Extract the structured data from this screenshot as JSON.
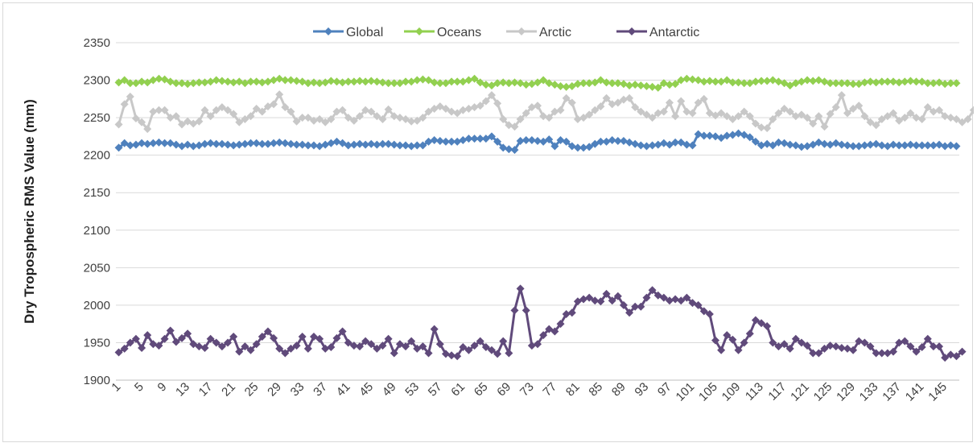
{
  "chart_data": {
    "type": "line",
    "title": "",
    "xlabel": "",
    "ylabel": "Dry Tropospheric RMS Value (mm)",
    "ylim": [
      1900,
      2350
    ],
    "yticks": [
      1900,
      1950,
      2000,
      2050,
      2100,
      2150,
      2200,
      2250,
      2300,
      2350
    ],
    "x_tick_start": 1,
    "x_tick_step": 4,
    "x_tick_end": 145,
    "legend_position": "top-center",
    "grid": "horizontal",
    "series": [
      {
        "name": "Global",
        "color": "#4f81bd",
        "values": [
          2210,
          2216,
          2213,
          2214,
          2216,
          2215,
          2216,
          2217,
          2216,
          2216,
          2214,
          2212,
          2214,
          2212,
          2213,
          2215,
          2216,
          2215,
          2215,
          2214,
          2213,
          2214,
          2215,
          2216,
          2216,
          2215,
          2215,
          2216,
          2217,
          2216,
          2215,
          2214,
          2214,
          2213,
          2213,
          2212,
          2214,
          2216,
          2218,
          2216,
          2213,
          2214,
          2215,
          2214,
          2215,
          2214,
          2215,
          2215,
          2214,
          2213,
          2213,
          2212,
          2213,
          2213,
          2218,
          2220,
          2219,
          2218,
          2218,
          2218,
          2220,
          2222,
          2222,
          2222,
          2222,
          2225,
          2218,
          2210,
          2208,
          2207,
          2219,
          2220,
          2220,
          2219,
          2218,
          2221,
          2212,
          2220,
          2218,
          2212,
          2210,
          2210,
          2211,
          2215,
          2218,
          2218,
          2220,
          2219,
          2219,
          2217,
          2215,
          2213,
          2212,
          2213,
          2214,
          2216,
          2214,
          2217,
          2217,
          2214,
          2213,
          2228,
          2226,
          2226,
          2225,
          2223,
          2226,
          2227,
          2229,
          2227,
          2224,
          2218,
          2213,
          2215,
          2213,
          2217,
          2216,
          2214,
          2213,
          2211,
          2212,
          2214,
          2217,
          2215,
          2214,
          2216,
          2214,
          2213,
          2212,
          2212,
          2213,
          2214,
          2215,
          2213,
          2212,
          2214,
          2213,
          2213,
          2214,
          2213,
          2213,
          2213,
          2213,
          2214,
          2212,
          2213,
          2212
        ]
      },
      {
        "name": "Oceans",
        "color": "#92d050",
        "values": [
          2297,
          2300,
          2296,
          2296,
          2298,
          2297,
          2300,
          2302,
          2301,
          2298,
          2296,
          2296,
          2295,
          2296,
          2297,
          2297,
          2298,
          2300,
          2299,
          2298,
          2297,
          2298,
          2296,
          2298,
          2298,
          2297,
          2298,
          2300,
          2302,
          2300,
          2300,
          2299,
          2298,
          2296,
          2297,
          2296,
          2297,
          2299,
          2298,
          2297,
          2298,
          2298,
          2299,
          2298,
          2299,
          2298,
          2297,
          2296,
          2296,
          2296,
          2298,
          2298,
          2300,
          2301,
          2300,
          2297,
          2296,
          2296,
          2298,
          2298,
          2298,
          2300,
          2302,
          2297,
          2294,
          2293,
          2296,
          2297,
          2296,
          2297,
          2296,
          2294,
          2295,
          2297,
          2300,
          2296,
          2294,
          2292,
          2291,
          2292,
          2295,
          2296,
          2296,
          2297,
          2300,
          2297,
          2296,
          2296,
          2295,
          2293,
          2294,
          2293,
          2292,
          2291,
          2290,
          2296,
          2294,
          2295,
          2300,
          2302,
          2301,
          2300,
          2298,
          2299,
          2298,
          2298,
          2300,
          2297,
          2297,
          2296,
          2296,
          2298,
          2299,
          2299,
          2300,
          2298,
          2296,
          2293,
          2296,
          2298,
          2300,
          2299,
          2300,
          2298,
          2296,
          2296,
          2296,
          2296,
          2295,
          2295,
          2297,
          2298,
          2297,
          2298,
          2298,
          2298,
          2297,
          2298,
          2299,
          2298,
          2298,
          2296,
          2296,
          2297,
          2295,
          2296,
          2296
        ]
      },
      {
        "name": "Arctic",
        "color": "#c8c8c8",
        "values": [
          2241,
          2268,
          2278,
          2249,
          2244,
          2235,
          2258,
          2260,
          2260,
          2250,
          2252,
          2241,
          2245,
          2242,
          2245,
          2260,
          2252,
          2260,
          2264,
          2260,
          2255,
          2244,
          2248,
          2252,
          2262,
          2258,
          2265,
          2268,
          2281,
          2264,
          2258,
          2245,
          2250,
          2250,
          2246,
          2248,
          2244,
          2248,
          2258,
          2260,
          2250,
          2246,
          2252,
          2260,
          2258,
          2252,
          2248,
          2261,
          2252,
          2250,
          2248,
          2245,
          2246,
          2250,
          2258,
          2262,
          2265,
          2262,
          2258,
          2256,
          2260,
          2262,
          2264,
          2266,
          2272,
          2280,
          2269,
          2248,
          2240,
          2238,
          2248,
          2256,
          2264,
          2266,
          2252,
          2250,
          2258,
          2260,
          2276,
          2270,
          2248,
          2250,
          2254,
          2260,
          2265,
          2276,
          2268,
          2270,
          2274,
          2276,
          2264,
          2258,
          2254,
          2250,
          2256,
          2258,
          2270,
          2252,
          2272,
          2258,
          2256,
          2270,
          2275,
          2256,
          2253,
          2256,
          2252,
          2248,
          2252,
          2258,
          2252,
          2242,
          2237,
          2236,
          2248,
          2256,
          2262,
          2258,
          2252,
          2254,
          2250,
          2242,
          2252,
          2238,
          2255,
          2264,
          2280,
          2256,
          2262,
          2266,
          2252,
          2244,
          2240,
          2248,
          2252,
          2256,
          2246,
          2250,
          2256,
          2250,
          2248,
          2264,
          2258,
          2260,
          2252,
          2250,
          2248,
          2244,
          2248,
          2260
        ]
      },
      {
        "name": "Antarctic",
        "color": "#604a7b",
        "values": [
          1937,
          1942,
          1950,
          1955,
          1943,
          1960,
          1948,
          1946,
          1955,
          1966,
          1951,
          1956,
          1962,
          1948,
          1945,
          1943,
          1955,
          1950,
          1945,
          1950,
          1958,
          1938,
          1945,
          1940,
          1948,
          1958,
          1965,
          1956,
          1942,
          1936,
          1942,
          1946,
          1958,
          1942,
          1958,
          1955,
          1942,
          1944,
          1956,
          1965,
          1950,
          1946,
          1945,
          1952,
          1948,
          1942,
          1946,
          1955,
          1936,
          1948,
          1945,
          1952,
          1942,
          1945,
          1936,
          1968,
          1948,
          1935,
          1933,
          1932,
          1944,
          1940,
          1946,
          1952,
          1944,
          1940,
          1935,
          1952,
          1936,
          1993,
          2022,
          1993,
          1946,
          1948,
          1960,
          1968,
          1965,
          1975,
          1988,
          1990,
          2005,
          2008,
          2010,
          2006,
          2005,
          2015,
          2006,
          2012,
          2000,
          1990,
          1998,
          1998,
          2010,
          2020,
          2013,
          2010,
          2006,
          2008,
          2006,
          2010,
          2003,
          2000,
          1992,
          1988,
          1953,
          1940,
          1960,
          1954,
          1940,
          1950,
          1962,
          1980,
          1976,
          1972,
          1950,
          1945,
          1948,
          1942,
          1955,
          1950,
          1946,
          1936,
          1936,
          1942,
          1946,
          1945,
          1943,
          1942,
          1940,
          1952,
          1950,
          1945,
          1936,
          1936,
          1936,
          1938,
          1950,
          1952,
          1945,
          1938,
          1944,
          1955,
          1945,
          1945,
          1930,
          1934,
          1932,
          1938
        ]
      }
    ]
  }
}
